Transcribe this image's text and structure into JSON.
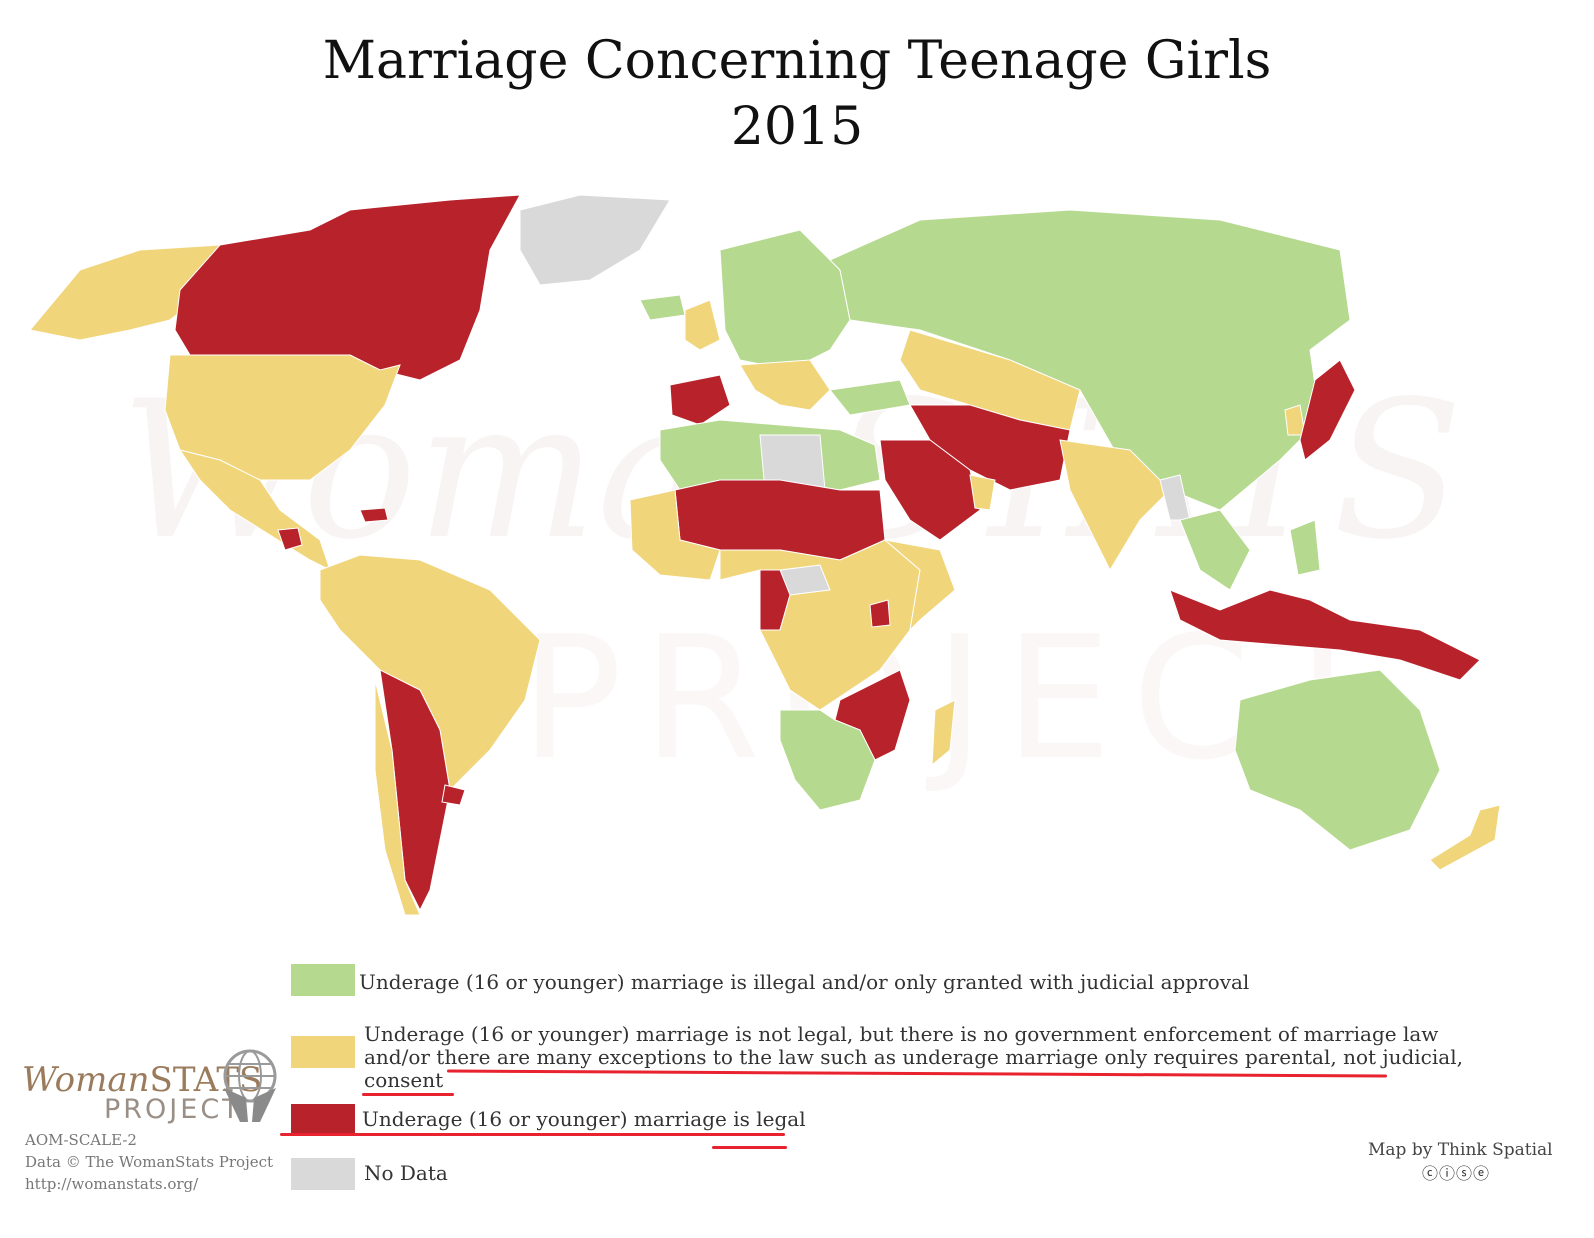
{
  "title": {
    "line1": "Marriage Concerning Teenage Girls",
    "line2": "2015"
  },
  "colors": {
    "illegal_judicial": "#b5d98f",
    "not_enforced": "#f0d57a",
    "legal": "#b8222b",
    "no_data": "#d9d9d9",
    "annotation_red": "#e8222e"
  },
  "legend": [
    {
      "category": "illegal_judicial",
      "label": "Underage (16 or younger) marriage is illegal and/or only granted with judicial approval"
    },
    {
      "category": "not_enforced",
      "lines": [
        "Underage (16 or younger) marriage is not legal, but there is no government enforcement of marriage law",
        "and/or there are many exceptions to the law such as underage marriage only requires parental, not judicial,",
        "consent"
      ]
    },
    {
      "category": "legal",
      "label": "Underage (16 or younger) marriage is legal"
    },
    {
      "category": "no_data",
      "label": "No Data"
    }
  ],
  "map_regions": [
    {
      "name": "Canada",
      "category": "legal"
    },
    {
      "name": "Alaska",
      "category": "not_enforced"
    },
    {
      "name": "Greenland",
      "category": "no_data"
    },
    {
      "name": "United States",
      "category": "not_enforced"
    },
    {
      "name": "Mexico & Central America",
      "category": "not_enforced"
    },
    {
      "name": "Guatemala",
      "category": "legal"
    },
    {
      "name": "Dominican Republic",
      "category": "legal"
    },
    {
      "name": "South America (north)",
      "category": "not_enforced"
    },
    {
      "name": "Bolivia / Paraguay / Argentina",
      "category": "legal"
    },
    {
      "name": "Chile",
      "category": "not_enforced"
    },
    {
      "name": "Uruguay",
      "category": "legal"
    },
    {
      "name": "Iceland",
      "category": "illegal_judicial"
    },
    {
      "name": "United Kingdom",
      "category": "not_enforced"
    },
    {
      "name": "Europe",
      "category": "illegal_judicial"
    },
    {
      "name": "Spain",
      "category": "legal"
    },
    {
      "name": "Italy & Balkans",
      "category": "not_enforced"
    },
    {
      "name": "Russia & Mongolia & China",
      "category": "illegal_judicial"
    },
    {
      "name": "Kazakhstan & Central Asia",
      "category": "not_enforced"
    },
    {
      "name": "Turkey",
      "category": "illegal_judicial"
    },
    {
      "name": "Iran / Afghanistan / Pakistan",
      "category": "legal"
    },
    {
      "name": "Saudi Arabia & Yemen",
      "category": "legal"
    },
    {
      "name": "Oman",
      "category": "not_enforced"
    },
    {
      "name": "India",
      "category": "not_enforced"
    },
    {
      "name": "Southeast Asia",
      "category": "illegal_judicial"
    },
    {
      "name": "Myanmar",
      "category": "no_data"
    },
    {
      "name": "Japan",
      "category": "legal"
    },
    {
      "name": "Korea",
      "category": "not_enforced"
    },
    {
      "name": "Indonesia & Papua New Guinea",
      "category": "legal"
    },
    {
      "name": "Philippines",
      "category": "illegal_judicial"
    },
    {
      "name": "Australia",
      "category": "illegal_judicial"
    },
    {
      "name": "New Zealand",
      "category": "not_enforced"
    },
    {
      "name": "North Africa (Morocco, Algeria, Egypt)",
      "category": "illegal_judicial"
    },
    {
      "name": "Libya",
      "category": "no_data"
    },
    {
      "name": "Sahel (Mali, Niger, Chad, Sudan)",
      "category": "legal"
    },
    {
      "name": "West Africa",
      "category": "not_enforced"
    },
    {
      "name": "Central Africa",
      "category": "not_enforced"
    },
    {
      "name": "Central African Republic",
      "category": "no_data"
    },
    {
      "name": "Cameroon / Gabon",
      "category": "legal"
    },
    {
      "name": "Uganda",
      "category": "legal"
    },
    {
      "name": "East Africa",
      "category": "not_enforced"
    },
    {
      "name": "Zambia / Malawi / Mozambique",
      "category": "legal"
    },
    {
      "name": "Angola / Namibia / South Africa",
      "category": "illegal_judicial"
    },
    {
      "name": "Madagascar",
      "category": "not_enforced"
    }
  ],
  "watermark": {
    "word": "WomanSTATS",
    "sub": "PROJECT"
  },
  "logo": {
    "name_italic": "Woman",
    "name_caps": "STATS",
    "sub": "PROJECT"
  },
  "footer": {
    "scale_code": "AOM-SCALE-2",
    "data_credit": "Data © The WomanStats Project",
    "url": "http://womanstats.org/",
    "map_credit": "Map by Think Spatial",
    "license_icons": "ⓒⓘⓢⓔ"
  }
}
